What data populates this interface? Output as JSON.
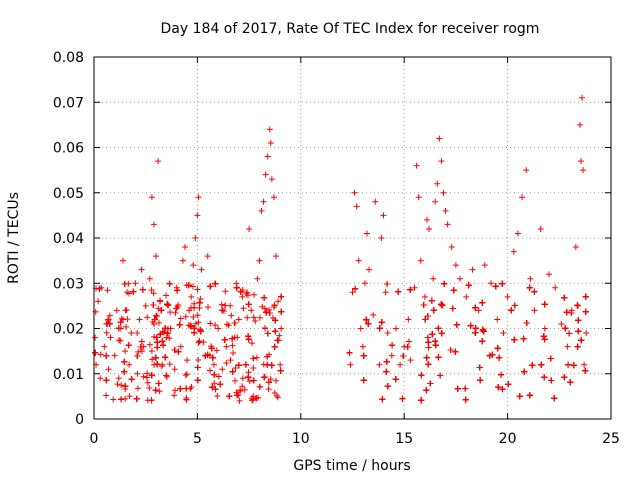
{
  "chart_data": {
    "type": "scatter",
    "title": "Day 184 of 2017, Rate Of TEC Index for receiver rogm",
    "xlabel": "GPS time / hours",
    "ylabel": "ROTI / TECUs",
    "xlim": [
      0,
      25
    ],
    "ylim": [
      0,
      0.08
    ],
    "x_ticks": [
      0,
      5,
      10,
      15,
      20,
      25
    ],
    "x_tick_labels": [
      "0",
      "5",
      "10",
      "15",
      "20",
      "25"
    ],
    "y_ticks": [
      0,
      0.01,
      0.02,
      0.03,
      0.04,
      0.05,
      0.06,
      0.07,
      0.08
    ],
    "y_tick_labels": [
      "0",
      "0.01",
      "0.02",
      "0.03",
      "0.04",
      "0.05",
      "0.06",
      "0.07",
      "0.08"
    ],
    "grid": true,
    "marker": "+",
    "color": "#ff0000",
    "series": [
      {
        "name": "ROTI",
        "points": [
          [
            0.1,
            0.012
          ],
          [
            0.2,
            0.026
          ],
          [
            0.3,
            0.009
          ],
          [
            0.35,
            0.029
          ],
          [
            0.5,
            0.016
          ],
          [
            0.6,
            0.021
          ],
          [
            0.7,
            0.011
          ],
          [
            0.8,
            0.018
          ],
          [
            1.0,
            0.014
          ],
          [
            1.1,
            0.024
          ],
          [
            1.2,
            0.009
          ],
          [
            1.3,
            0.02
          ],
          [
            1.4,
            0.035
          ],
          [
            1.5,
            0.015
          ],
          [
            1.6,
            0.028
          ],
          [
            1.7,
            0.012
          ],
          [
            1.8,
            0.019
          ],
          [
            2.0,
            0.03
          ],
          [
            2.1,
            0.01
          ],
          [
            2.2,
            0.022
          ],
          [
            2.3,
            0.033
          ],
          [
            2.4,
            0.016
          ],
          [
            2.5,
            0.025
          ],
          [
            2.6,
            0.008
          ],
          [
            2.7,
            0.031
          ],
          [
            2.8,
            0.015
          ],
          [
            2.9,
            0.021
          ],
          [
            2.8,
            0.049
          ],
          [
            2.9,
            0.043
          ],
          [
            3.0,
            0.036
          ],
          [
            3.1,
            0.057
          ],
          [
            3.2,
            0.026
          ],
          [
            3.3,
            0.012
          ],
          [
            3.5,
            0.018
          ],
          [
            3.7,
            0.02
          ],
          [
            3.9,
            0.011
          ],
          [
            4.0,
            0.029
          ],
          [
            4.2,
            0.016
          ],
          [
            4.3,
            0.035
          ],
          [
            4.4,
            0.038
          ],
          [
            4.5,
            0.013
          ],
          [
            4.6,
            0.024
          ],
          [
            4.7,
            0.027
          ],
          [
            4.8,
            0.034
          ],
          [
            4.9,
            0.04
          ],
          [
            5.0,
            0.045
          ],
          [
            5.05,
            0.049
          ],
          [
            5.2,
            0.033
          ],
          [
            5.3,
            0.017
          ],
          [
            5.5,
            0.036
          ],
          [
            5.6,
            0.014
          ],
          [
            5.8,
            0.012
          ],
          [
            6.0,
            0.02
          ],
          [
            6.2,
            0.011
          ],
          [
            6.4,
            0.016
          ],
          [
            6.6,
            0.013
          ],
          [
            6.8,
            0.018
          ],
          [
            7.0,
            0.022
          ],
          [
            7.2,
            0.009
          ],
          [
            7.4,
            0.028
          ],
          [
            7.5,
            0.042
          ],
          [
            7.6,
            0.024
          ],
          [
            7.7,
            0.005
          ],
          [
            7.9,
            0.031
          ],
          [
            8.0,
            0.035
          ],
          [
            8.1,
            0.046
          ],
          [
            8.2,
            0.048
          ],
          [
            8.3,
            0.054
          ],
          [
            8.4,
            0.058
          ],
          [
            8.5,
            0.064
          ],
          [
            8.55,
            0.061
          ],
          [
            8.6,
            0.053
          ],
          [
            8.7,
            0.049
          ],
          [
            8.8,
            0.036
          ],
          [
            8.9,
            0.026
          ],
          [
            9.0,
            0.012
          ],
          [
            9.05,
            0.02
          ],
          [
            12.4,
            0.012
          ],
          [
            12.5,
            0.028
          ],
          [
            12.6,
            0.05
          ],
          [
            12.7,
            0.047
          ],
          [
            12.8,
            0.035
          ],
          [
            12.9,
            0.02
          ],
          [
            13.0,
            0.016
          ],
          [
            13.1,
            0.03
          ],
          [
            13.2,
            0.041
          ],
          [
            13.3,
            0.033
          ],
          [
            13.5,
            0.023
          ],
          [
            13.6,
            0.048
          ],
          [
            13.8,
            0.012
          ],
          [
            13.9,
            0.04
          ],
          [
            14.0,
            0.045
          ],
          [
            14.1,
            0.028
          ],
          [
            14.2,
            0.019
          ],
          [
            14.4,
            0.014
          ],
          [
            14.6,
            0.02
          ],
          [
            14.8,
            0.012
          ],
          [
            15.0,
            0.016
          ],
          [
            15.2,
            0.022
          ],
          [
            15.3,
            0.013
          ],
          [
            15.5,
            0.029
          ],
          [
            15.6,
            0.056
          ],
          [
            15.7,
            0.049
          ],
          [
            15.8,
            0.035
          ],
          [
            16.0,
            0.027
          ],
          [
            16.1,
            0.044
          ],
          [
            16.2,
            0.042
          ],
          [
            16.4,
            0.031
          ],
          [
            16.5,
            0.048
          ],
          [
            16.6,
            0.052
          ],
          [
            16.7,
            0.062
          ],
          [
            16.8,
            0.057
          ],
          [
            16.9,
            0.05
          ],
          [
            17.0,
            0.046
          ],
          [
            17.1,
            0.043
          ],
          [
            17.3,
            0.038
          ],
          [
            17.5,
            0.034
          ],
          [
            17.7,
            0.031
          ],
          [
            18.0,
            0.027
          ],
          [
            18.3,
            0.033
          ],
          [
            18.6,
            0.024
          ],
          [
            18.9,
            0.034
          ],
          [
            19.2,
            0.03
          ],
          [
            19.5,
            0.022
          ],
          [
            19.8,
            0.019
          ],
          [
            20.0,
            0.027
          ],
          [
            20.3,
            0.037
          ],
          [
            20.5,
            0.041
          ],
          [
            20.7,
            0.049
          ],
          [
            20.9,
            0.055
          ],
          [
            21.1,
            0.031
          ],
          [
            21.3,
            0.024
          ],
          [
            21.6,
            0.042
          ],
          [
            21.8,
            0.02
          ],
          [
            22.0,
            0.032
          ],
          [
            22.3,
            0.029
          ],
          [
            22.6,
            0.021
          ],
          [
            22.9,
            0.016
          ],
          [
            23.1,
            0.024
          ],
          [
            23.3,
            0.038
          ],
          [
            23.4,
            0.025
          ],
          [
            23.5,
            0.065
          ],
          [
            23.55,
            0.057
          ],
          [
            23.6,
            0.071
          ],
          [
            23.65,
            0.055
          ],
          [
            23.7,
            0.012
          ],
          [
            23.8,
            0.019
          ]
        ],
        "generated_baseline": {
          "segments": [
            [
              0.05,
              9.1
            ],
            [
              12.35,
              23.85
            ]
          ],
          "density_per_hour": 110,
          "value_min": 0.004,
          "value_max": 0.03
        }
      }
    ]
  }
}
